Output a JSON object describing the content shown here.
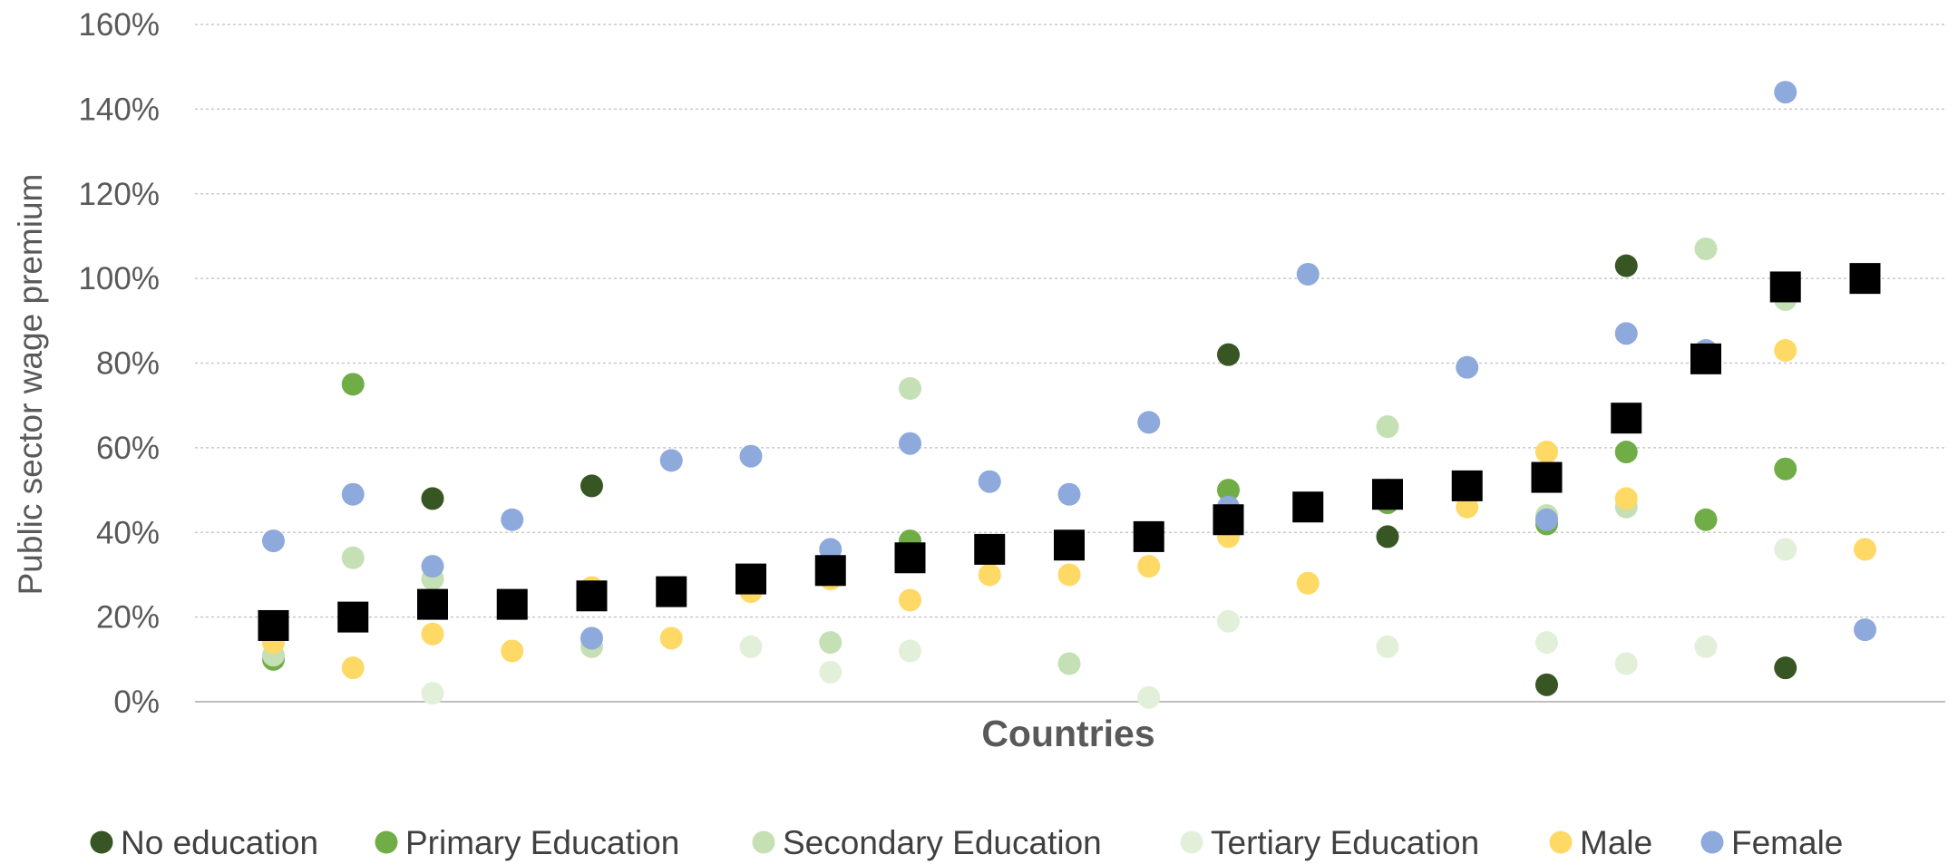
{
  "chart_data": {
    "type": "scatter",
    "title": "",
    "xlabel": "Countries",
    "ylabel": "Public sector wage premium",
    "ylim": [
      0,
      1.6
    ],
    "yticks": [
      "0%",
      "20%",
      "40%",
      "60%",
      "80%",
      "100%",
      "120%",
      "140%",
      "160%"
    ],
    "ytick_values": [
      0,
      0.2,
      0.4,
      0.6,
      0.8,
      1.0,
      1.2,
      1.4,
      1.6
    ],
    "grid": "horizontal dotted",
    "legend_position": "bottom",
    "n_countries": 21,
    "overall": {
      "color": "#000000",
      "values": [
        0.18,
        0.2,
        0.23,
        0.23,
        0.25,
        0.26,
        0.29,
        0.31,
        0.34,
        0.36,
        0.37,
        0.39,
        0.43,
        0.46,
        0.49,
        0.51,
        0.53,
        0.67,
        0.81,
        0.98,
        1.0
      ]
    },
    "series": [
      {
        "name": "No education",
        "color": "#375623",
        "values": [
          null,
          null,
          0.48,
          null,
          0.51,
          null,
          null,
          null,
          null,
          null,
          null,
          null,
          0.82,
          null,
          0.39,
          null,
          0.04,
          1.03,
          null,
          0.08,
          null
        ]
      },
      {
        "name": "Primary Education",
        "color": "#70AD47",
        "values": [
          0.1,
          0.75,
          null,
          null,
          null,
          null,
          null,
          null,
          0.38,
          null,
          null,
          null,
          0.5,
          null,
          0.47,
          null,
          0.42,
          0.59,
          0.43,
          0.55,
          null
        ]
      },
      {
        "name": "Secondary Education",
        "color": "#C5E0B4",
        "values": [
          0.11,
          0.34,
          0.29,
          null,
          0.13,
          null,
          0.28,
          0.14,
          0.74,
          null,
          0.09,
          null,
          null,
          null,
          0.65,
          null,
          0.44,
          0.46,
          1.07,
          0.95,
          null
        ]
      },
      {
        "name": "Tertiary Education",
        "color": "#E2F0D9",
        "values": [
          null,
          null,
          0.02,
          null,
          null,
          null,
          0.13,
          0.07,
          0.12,
          null,
          null,
          0.01,
          0.19,
          null,
          0.13,
          null,
          0.14,
          0.09,
          0.13,
          0.36,
          null
        ]
      },
      {
        "name": "Male",
        "color": "#FFD966",
        "values": [
          0.14,
          0.08,
          0.16,
          0.12,
          0.27,
          0.15,
          0.26,
          0.29,
          0.24,
          0.3,
          0.3,
          0.32,
          0.39,
          0.28,
          null,
          0.46,
          0.59,
          0.48,
          0.8,
          0.83,
          0.36
        ]
      },
      {
        "name": "Female",
        "color": "#8EA9DB",
        "values": [
          0.38,
          0.49,
          0.32,
          0.43,
          0.15,
          0.57,
          0.58,
          0.36,
          0.61,
          0.52,
          0.49,
          0.66,
          0.46,
          1.01,
          0.5,
          0.79,
          0.43,
          0.87,
          0.83,
          1.44,
          0.17
        ]
      }
    ]
  }
}
